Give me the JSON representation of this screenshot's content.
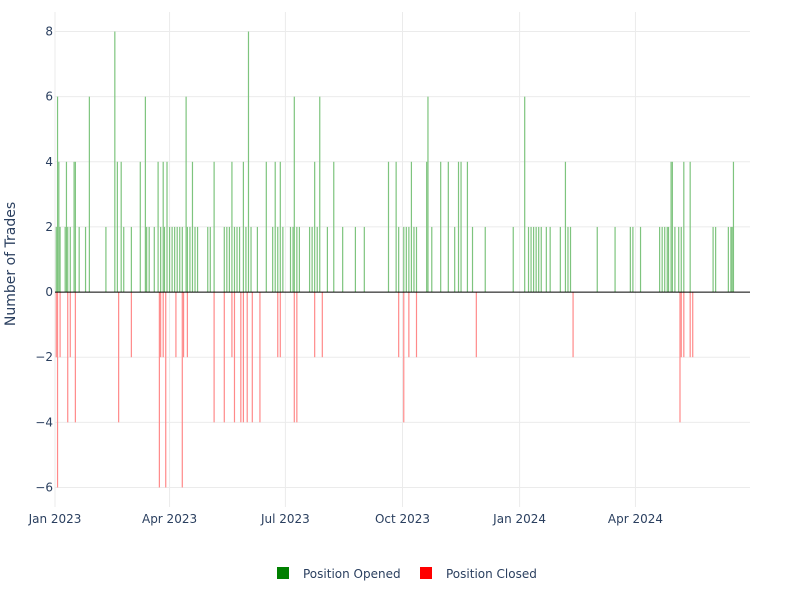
{
  "chart_data": {
    "type": "bar",
    "title": "",
    "xlabel": "",
    "ylabel": "Number of Trades",
    "x_axis": {
      "type": "date",
      "range": [
        "2023-01-01",
        "2024-06-30"
      ],
      "ticks": [
        {
          "date": "2023-01-01",
          "label": "Jan 2023"
        },
        {
          "date": "2023-04-01",
          "label": "Apr 2023"
        },
        {
          "date": "2023-07-01",
          "label": "Jul 2023"
        },
        {
          "date": "2023-10-01",
          "label": "Oct 2023"
        },
        {
          "date": "2024-01-01",
          "label": "Jan 2024"
        },
        {
          "date": "2024-04-01",
          "label": "Apr 2024"
        }
      ]
    },
    "y_axis": {
      "range": [
        -6.6,
        8.6
      ],
      "ticks": [
        -6,
        -4,
        -2,
        0,
        2,
        4,
        6,
        8
      ]
    },
    "grid": true,
    "legend": "bottom-center",
    "series": [
      {
        "name": "Position Opened",
        "color": "#008000",
        "points": [
          [
            "2023-01-02",
            2
          ],
          [
            "2023-01-03",
            6
          ],
          [
            "2023-01-04",
            4
          ],
          [
            "2023-01-05",
            2
          ],
          [
            "2023-01-09",
            2
          ],
          [
            "2023-01-10",
            4
          ],
          [
            "2023-01-11",
            2
          ],
          [
            "2023-01-13",
            2
          ],
          [
            "2023-01-16",
            4
          ],
          [
            "2023-01-17",
            4
          ],
          [
            "2023-01-20",
            2
          ],
          [
            "2023-01-25",
            2
          ],
          [
            "2023-01-28",
            6
          ],
          [
            "2023-02-10",
            2
          ],
          [
            "2023-02-17",
            8
          ],
          [
            "2023-02-19",
            4
          ],
          [
            "2023-02-22",
            4
          ],
          [
            "2023-02-24",
            2
          ],
          [
            "2023-03-02",
            2
          ],
          [
            "2023-03-09",
            4
          ],
          [
            "2023-03-13",
            6
          ],
          [
            "2023-03-14",
            2
          ],
          [
            "2023-03-16",
            2
          ],
          [
            "2023-03-20",
            2
          ],
          [
            "2023-03-23",
            4
          ],
          [
            "2023-03-25",
            2
          ],
          [
            "2023-03-27",
            4
          ],
          [
            "2023-03-28",
            2
          ],
          [
            "2023-03-30",
            4
          ],
          [
            "2023-04-01",
            2
          ],
          [
            "2023-04-03",
            2
          ],
          [
            "2023-04-05",
            2
          ],
          [
            "2023-04-07",
            2
          ],
          [
            "2023-04-09",
            2
          ],
          [
            "2023-04-11",
            2
          ],
          [
            "2023-04-14",
            6
          ],
          [
            "2023-04-15",
            2
          ],
          [
            "2023-04-17",
            2
          ],
          [
            "2023-04-19",
            4
          ],
          [
            "2023-04-21",
            2
          ],
          [
            "2023-04-23",
            2
          ],
          [
            "2023-05-01",
            2
          ],
          [
            "2023-05-03",
            2
          ],
          [
            "2023-05-06",
            4
          ],
          [
            "2023-05-14",
            2
          ],
          [
            "2023-05-16",
            2
          ],
          [
            "2023-05-18",
            2
          ],
          [
            "2023-05-20",
            4
          ],
          [
            "2023-05-22",
            2
          ],
          [
            "2023-05-24",
            2
          ],
          [
            "2023-05-26",
            2
          ],
          [
            "2023-05-29",
            4
          ],
          [
            "2023-05-31",
            2
          ],
          [
            "2023-06-02",
            8
          ],
          [
            "2023-06-04",
            2
          ],
          [
            "2023-06-09",
            2
          ],
          [
            "2023-06-16",
            4
          ],
          [
            "2023-06-21",
            2
          ],
          [
            "2023-06-23",
            4
          ],
          [
            "2023-06-25",
            2
          ],
          [
            "2023-06-27",
            4
          ],
          [
            "2023-06-29",
            2
          ],
          [
            "2023-07-05",
            2
          ],
          [
            "2023-07-07",
            2
          ],
          [
            "2023-07-08",
            6
          ],
          [
            "2023-07-10",
            2
          ],
          [
            "2023-07-12",
            2
          ],
          [
            "2023-07-20",
            2
          ],
          [
            "2023-07-22",
            2
          ],
          [
            "2023-07-24",
            4
          ],
          [
            "2023-07-26",
            2
          ],
          [
            "2023-07-28",
            6
          ],
          [
            "2023-08-03",
            2
          ],
          [
            "2023-08-08",
            4
          ],
          [
            "2023-08-15",
            2
          ],
          [
            "2023-08-25",
            2
          ],
          [
            "2023-09-01",
            2
          ],
          [
            "2023-09-20",
            4
          ],
          [
            "2023-09-26",
            4
          ],
          [
            "2023-09-28",
            2
          ],
          [
            "2023-10-02",
            2
          ],
          [
            "2023-10-04",
            2
          ],
          [
            "2023-10-06",
            2
          ],
          [
            "2023-10-08",
            4
          ],
          [
            "2023-10-10",
            2
          ],
          [
            "2023-10-12",
            2
          ],
          [
            "2023-10-20",
            4
          ],
          [
            "2023-10-21",
            6
          ],
          [
            "2023-10-24",
            2
          ],
          [
            "2023-10-31",
            4
          ],
          [
            "2023-11-06",
            4
          ],
          [
            "2023-11-11",
            2
          ],
          [
            "2023-11-14",
            4
          ],
          [
            "2023-11-16",
            4
          ],
          [
            "2023-11-21",
            4
          ],
          [
            "2023-11-25",
            2
          ],
          [
            "2023-12-05",
            2
          ],
          [
            "2023-12-27",
            2
          ],
          [
            "2024-01-05",
            6
          ],
          [
            "2024-01-08",
            2
          ],
          [
            "2024-01-10",
            2
          ],
          [
            "2024-01-12",
            2
          ],
          [
            "2024-01-14",
            2
          ],
          [
            "2024-01-16",
            2
          ],
          [
            "2024-01-18",
            2
          ],
          [
            "2024-01-22",
            2
          ],
          [
            "2024-01-25",
            2
          ],
          [
            "2024-02-02",
            2
          ],
          [
            "2024-02-06",
            4
          ],
          [
            "2024-02-08",
            2
          ],
          [
            "2024-02-10",
            2
          ],
          [
            "2024-03-02",
            2
          ],
          [
            "2024-03-16",
            2
          ],
          [
            "2024-03-28",
            2
          ],
          [
            "2024-03-30",
            2
          ],
          [
            "2024-04-05",
            2
          ],
          [
            "2024-04-20",
            2
          ],
          [
            "2024-04-22",
            2
          ],
          [
            "2024-04-24",
            2
          ],
          [
            "2024-04-26",
            2
          ],
          [
            "2024-04-27",
            2
          ],
          [
            "2024-04-29",
            4
          ],
          [
            "2024-04-30",
            4
          ],
          [
            "2024-05-02",
            2
          ],
          [
            "2024-05-05",
            2
          ],
          [
            "2024-05-07",
            2
          ],
          [
            "2024-05-09",
            4
          ],
          [
            "2024-05-14",
            4
          ],
          [
            "2024-06-01",
            2
          ],
          [
            "2024-06-03",
            2
          ],
          [
            "2024-06-13",
            2
          ],
          [
            "2024-06-15",
            2
          ],
          [
            "2024-06-16",
            2
          ],
          [
            "2024-06-17",
            4
          ]
        ]
      },
      {
        "name": "Position Closed",
        "color": "#ff0000",
        "points": [
          [
            "2023-01-02",
            -2
          ],
          [
            "2023-01-03",
            -6
          ],
          [
            "2023-01-05",
            -2
          ],
          [
            "2023-01-11",
            -4
          ],
          [
            "2023-01-13",
            -2
          ],
          [
            "2023-01-17",
            -4
          ],
          [
            "2023-02-20",
            -4
          ],
          [
            "2023-03-02",
            -2
          ],
          [
            "2023-03-24",
            -6
          ],
          [
            "2023-03-25",
            -2
          ],
          [
            "2023-03-27",
            -2
          ],
          [
            "2023-03-29",
            -6
          ],
          [
            "2023-04-06",
            -2
          ],
          [
            "2023-04-11",
            -6
          ],
          [
            "2023-04-12",
            -2
          ],
          [
            "2023-04-15",
            -2
          ],
          [
            "2023-05-06",
            -4
          ],
          [
            "2023-05-14",
            -4
          ],
          [
            "2023-05-20",
            -2
          ],
          [
            "2023-05-22",
            -4
          ],
          [
            "2023-05-27",
            -4
          ],
          [
            "2023-05-29",
            -4
          ],
          [
            "2023-06-01",
            -4
          ],
          [
            "2023-06-05",
            -4
          ],
          [
            "2023-06-11",
            -4
          ],
          [
            "2023-06-25",
            -2
          ],
          [
            "2023-06-27",
            -2
          ],
          [
            "2023-07-08",
            -4
          ],
          [
            "2023-07-10",
            -4
          ],
          [
            "2023-07-24",
            -2
          ],
          [
            "2023-07-30",
            -2
          ],
          [
            "2023-09-28",
            -2
          ],
          [
            "2023-10-02",
            -4
          ],
          [
            "2023-10-06",
            -2
          ],
          [
            "2023-10-12",
            -2
          ],
          [
            "2023-11-28",
            -2
          ],
          [
            "2024-02-12",
            -2
          ],
          [
            "2024-05-06",
            -4
          ],
          [
            "2024-05-07",
            -2
          ],
          [
            "2024-05-09",
            -2
          ],
          [
            "2024-05-14",
            -2
          ],
          [
            "2024-05-16",
            -2
          ]
        ]
      }
    ]
  },
  "legend": {
    "items": [
      {
        "label": "Position Opened",
        "color": "#008000"
      },
      {
        "label": "Position Closed",
        "color": "#ff0000"
      }
    ]
  }
}
